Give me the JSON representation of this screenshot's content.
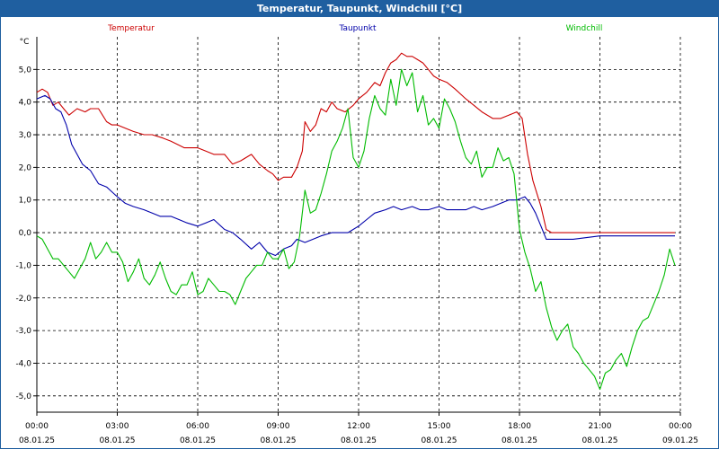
{
  "window": {
    "title": "Temperatur, Taupunkt, Windchill [°C]"
  },
  "chart_data": {
    "type": "line",
    "title": "Temperatur, Taupunkt, Windchill [°C]",
    "ylabel": "°C",
    "xlabel": "",
    "ylim": [
      -5.5,
      6.0
    ],
    "xlim": [
      0,
      24
    ],
    "grid": true,
    "yticks": [
      5.0,
      4.0,
      3.0,
      2.0,
      1.0,
      0.0,
      -1.0,
      -2.0,
      -3.0,
      -4.0,
      -5.0
    ],
    "ytick_labels": [
      "5,0",
      "4,0",
      "3,0",
      "2,0",
      "1,0",
      "0,0",
      "-1,0",
      "-2,0",
      "-3,0",
      "-4,0",
      "-5,0"
    ],
    "xticks": [
      {
        "time": "00:00",
        "date": "08.01.25"
      },
      {
        "time": "03:00",
        "date": "08.01.25"
      },
      {
        "time": "06:00",
        "date": "08.01.25"
      },
      {
        "time": "09:00",
        "date": "08.01.25"
      },
      {
        "time": "12:00",
        "date": "08.01.25"
      },
      {
        "time": "15:00",
        "date": "08.01.25"
      },
      {
        "time": "18:00",
        "date": "08.01.25"
      },
      {
        "time": "21:00",
        "date": "08.01.25"
      },
      {
        "time": "00:00",
        "date": "09.01.25"
      }
    ],
    "series": [
      {
        "name": "Temperatur",
        "color": "#cc0000",
        "x": [
          0,
          0.2,
          0.4,
          0.6,
          0.8,
          1.0,
          1.2,
          1.5,
          1.8,
          2.0,
          2.3,
          2.6,
          2.8,
          3.0,
          3.3,
          3.6,
          4.0,
          4.3,
          4.7,
          5.0,
          5.5,
          5.8,
          6.0,
          6.3,
          6.6,
          7.0,
          7.3,
          7.6,
          8.0,
          8.3,
          8.6,
          8.8,
          9.0,
          9.2,
          9.5,
          9.7,
          9.9,
          10.0,
          10.2,
          10.4,
          10.6,
          10.8,
          11.0,
          11.2,
          11.5,
          11.8,
          12.0,
          12.3,
          12.6,
          12.8,
          13.0,
          13.2,
          13.4,
          13.6,
          13.8,
          14.0,
          14.2,
          14.4,
          14.6,
          14.8,
          15.0,
          15.3,
          15.6,
          16.0,
          16.3,
          16.6,
          17.0,
          17.3,
          17.6,
          17.9,
          18.1,
          18.3,
          18.5,
          18.8,
          19.0,
          19.2,
          19.5,
          20.0,
          21.0,
          22.0,
          23.0,
          23.8
        ],
        "values": [
          4.3,
          4.4,
          4.3,
          3.9,
          4.0,
          3.8,
          3.6,
          3.8,
          3.7,
          3.8,
          3.8,
          3.4,
          3.3,
          3.3,
          3.2,
          3.1,
          3.0,
          3.0,
          2.9,
          2.8,
          2.6,
          2.6,
          2.6,
          2.5,
          2.4,
          2.4,
          2.1,
          2.2,
          2.4,
          2.1,
          1.9,
          1.8,
          1.6,
          1.7,
          1.7,
          2.0,
          2.5,
          3.4,
          3.1,
          3.3,
          3.8,
          3.7,
          4.0,
          3.8,
          3.7,
          3.9,
          4.1,
          4.3,
          4.6,
          4.5,
          4.9,
          5.2,
          5.3,
          5.5,
          5.4,
          5.4,
          5.3,
          5.2,
          5.0,
          4.8,
          4.7,
          4.6,
          4.4,
          4.1,
          3.9,
          3.7,
          3.5,
          3.5,
          3.6,
          3.7,
          3.5,
          2.4,
          1.6,
          0.8,
          0.1,
          0.0,
          0.0,
          0.0,
          0.0,
          0.0,
          0.0,
          0.0
        ]
      },
      {
        "name": "Taupunkt",
        "color": "#0000aa",
        "x": [
          0,
          0.3,
          0.5,
          0.7,
          0.9,
          1.1,
          1.3,
          1.5,
          1.7,
          2.0,
          2.3,
          2.6,
          3.0,
          3.3,
          3.6,
          4.0,
          4.3,
          4.6,
          5.0,
          5.3,
          5.6,
          6.0,
          6.3,
          6.6,
          7.0,
          7.3,
          7.6,
          8.0,
          8.3,
          8.6,
          8.9,
          9.2,
          9.5,
          9.7,
          10.0,
          10.3,
          10.6,
          11.0,
          11.3,
          11.6,
          12.0,
          12.3,
          12.6,
          13.0,
          13.3,
          13.6,
          14.0,
          14.3,
          14.6,
          15.0,
          15.3,
          15.6,
          16.0,
          16.3,
          16.6,
          17.0,
          17.3,
          17.6,
          17.9,
          18.2,
          18.4,
          18.6,
          18.8,
          19.0,
          19.3,
          20.0,
          21.0,
          22.0,
          23.0,
          23.8
        ],
        "values": [
          4.1,
          4.2,
          4.1,
          3.8,
          3.7,
          3.3,
          2.7,
          2.4,
          2.1,
          1.9,
          1.5,
          1.4,
          1.1,
          0.9,
          0.8,
          0.7,
          0.6,
          0.5,
          0.5,
          0.4,
          0.3,
          0.2,
          0.3,
          0.4,
          0.1,
          0.0,
          -0.2,
          -0.5,
          -0.3,
          -0.6,
          -0.7,
          -0.5,
          -0.4,
          -0.2,
          -0.3,
          -0.2,
          -0.1,
          0.0,
          0.0,
          0.0,
          0.2,
          0.4,
          0.6,
          0.7,
          0.8,
          0.7,
          0.8,
          0.7,
          0.7,
          0.8,
          0.7,
          0.7,
          0.7,
          0.8,
          0.7,
          0.8,
          0.9,
          1.0,
          1.0,
          1.1,
          0.9,
          0.6,
          0.2,
          -0.2,
          -0.2,
          -0.2,
          -0.1,
          -0.1,
          -0.1,
          -0.1
        ]
      },
      {
        "name": "Windchill",
        "color": "#00bb00",
        "x": [
          0,
          0.2,
          0.4,
          0.6,
          0.8,
          1.0,
          1.2,
          1.4,
          1.6,
          1.8,
          2.0,
          2.2,
          2.4,
          2.6,
          2.8,
          3.0,
          3.2,
          3.4,
          3.6,
          3.8,
          4.0,
          4.2,
          4.4,
          4.6,
          4.8,
          5.0,
          5.2,
          5.4,
          5.6,
          5.8,
          6.0,
          6.2,
          6.4,
          6.6,
          6.8,
          7.0,
          7.2,
          7.4,
          7.6,
          7.8,
          8.0,
          8.2,
          8.4,
          8.6,
          8.8,
          9.0,
          9.2,
          9.4,
          9.6,
          9.8,
          10.0,
          10.2,
          10.4,
          10.6,
          10.8,
          11.0,
          11.2,
          11.4,
          11.6,
          11.8,
          12.0,
          12.2,
          12.4,
          12.6,
          12.8,
          13.0,
          13.2,
          13.4,
          13.6,
          13.8,
          14.0,
          14.2,
          14.4,
          14.6,
          14.8,
          15.0,
          15.2,
          15.4,
          15.6,
          15.8,
          16.0,
          16.2,
          16.4,
          16.6,
          16.8,
          17.0,
          17.2,
          17.4,
          17.6,
          17.8,
          18.0,
          18.2,
          18.4,
          18.6,
          18.8,
          19.0,
          19.2,
          19.4,
          19.6,
          19.8,
          20.0,
          20.2,
          20.4,
          20.6,
          20.8,
          21.0,
          21.2,
          21.4,
          21.6,
          21.8,
          22.0,
          22.2,
          22.4,
          22.6,
          22.8,
          23.0,
          23.2,
          23.4,
          23.6,
          23.8
        ],
        "values": [
          -0.1,
          -0.2,
          -0.5,
          -0.8,
          -0.8,
          -1.0,
          -1.2,
          -1.4,
          -1.1,
          -0.8,
          -0.3,
          -0.8,
          -0.6,
          -0.3,
          -0.6,
          -0.6,
          -0.9,
          -1.5,
          -1.2,
          -0.8,
          -1.4,
          -1.6,
          -1.3,
          -0.9,
          -1.4,
          -1.8,
          -1.9,
          -1.6,
          -1.6,
          -1.2,
          -1.9,
          -1.8,
          -1.4,
          -1.6,
          -1.8,
          -1.8,
          -1.9,
          -2.2,
          -1.8,
          -1.4,
          -1.2,
          -1.0,
          -1.0,
          -0.6,
          -0.8,
          -0.8,
          -0.5,
          -1.1,
          -0.9,
          -0.1,
          1.3,
          0.6,
          0.7,
          1.2,
          1.8,
          2.5,
          2.8,
          3.2,
          3.8,
          2.3,
          2.0,
          2.5,
          3.5,
          4.2,
          3.8,
          3.6,
          4.7,
          3.9,
          5.0,
          4.5,
          4.9,
          3.7,
          4.2,
          3.3,
          3.5,
          3.2,
          4.1,
          3.8,
          3.4,
          2.8,
          2.3,
          2.1,
          2.5,
          1.7,
          2.0,
          2.0,
          2.6,
          2.2,
          2.3,
          1.8,
          0.1,
          -0.6,
          -1.1,
          -1.8,
          -1.5,
          -2.3,
          -2.9,
          -3.3,
          -3.0,
          -2.8,
          -3.5,
          -3.7,
          -4.0,
          -4.2,
          -4.4,
          -4.8,
          -4.3,
          -4.2,
          -3.9,
          -3.7,
          -4.1,
          -3.5,
          -3.0,
          -2.7,
          -2.6,
          -2.2,
          -1.8,
          -1.3,
          -0.5,
          -1.0
        ]
      }
    ]
  }
}
